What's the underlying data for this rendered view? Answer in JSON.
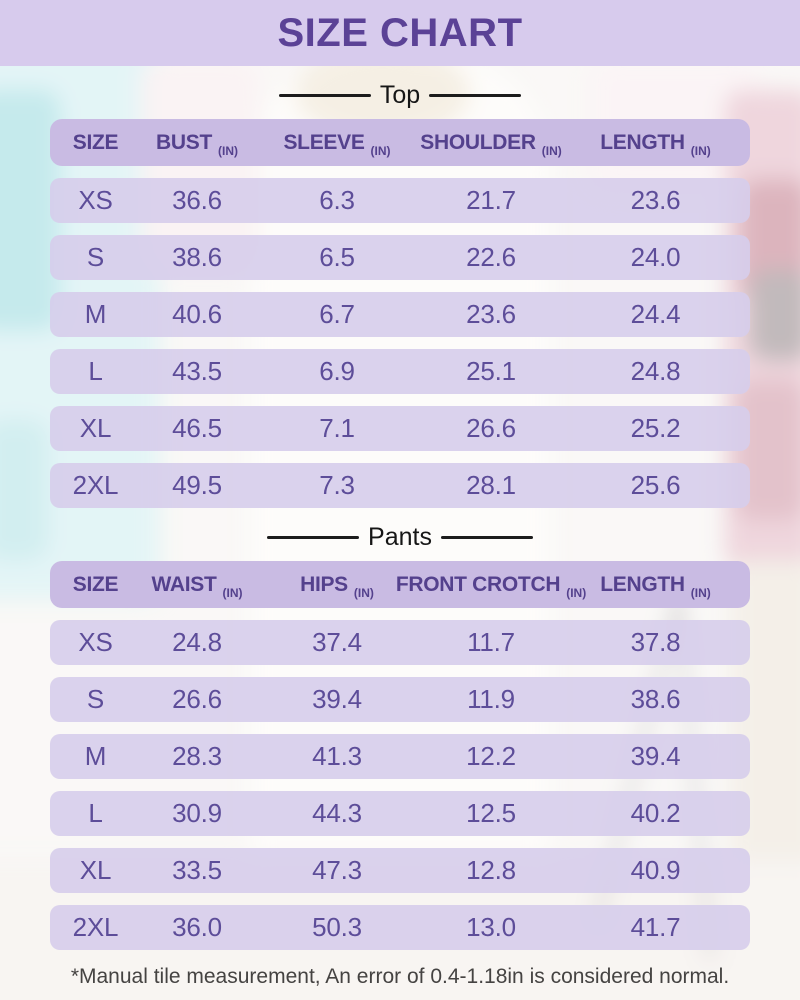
{
  "title": "SIZE CHART",
  "unit_label": "(IN)",
  "footer_note": "*Manual tile measurement, An error of 0.4-1.18in is considered normal.",
  "colors": {
    "banner_bg": "#d7cbed",
    "title_text": "#5b4296",
    "header_row_bg": "#c9bbe3",
    "header_text": "#54418d",
    "row_bg": "#d6cdeb",
    "value_text": "#5d4d99",
    "section_label_text": "#161616",
    "rule_color": "#1c1c1c",
    "footer_text": "#454342"
  },
  "sections": [
    {
      "label": "Top",
      "columns": [
        "SIZE",
        "BUST",
        "SLEEVE",
        "SHOULDER",
        "LENGTH"
      ],
      "rows": [
        {
          "size": "XS",
          "values": [
            "36.6",
            "6.3",
            "21.7",
            "23.6"
          ]
        },
        {
          "size": "S",
          "values": [
            "38.6",
            "6.5",
            "22.6",
            "24.0"
          ]
        },
        {
          "size": "M",
          "values": [
            "40.6",
            "6.7",
            "23.6",
            "24.4"
          ]
        },
        {
          "size": "L",
          "values": [
            "43.5",
            "6.9",
            "25.1",
            "24.8"
          ]
        },
        {
          "size": "XL",
          "values": [
            "46.5",
            "7.1",
            "26.6",
            "25.2"
          ]
        },
        {
          "size": "2XL",
          "values": [
            "49.5",
            "7.3",
            "28.1",
            "25.6"
          ]
        }
      ]
    },
    {
      "label": "Pants",
      "columns": [
        "SIZE",
        "WAIST",
        "HIPS",
        "FRONT CROTCH",
        "LENGTH"
      ],
      "rows": [
        {
          "size": "XS",
          "values": [
            "24.8",
            "37.4",
            "11.7",
            "37.8"
          ]
        },
        {
          "size": "S",
          "values": [
            "26.6",
            "39.4",
            "11.9",
            "38.6"
          ]
        },
        {
          "size": "M",
          "values": [
            "28.3",
            "41.3",
            "12.2",
            "39.4"
          ]
        },
        {
          "size": "L",
          "values": [
            "30.9",
            "44.3",
            "12.5",
            "40.2"
          ]
        },
        {
          "size": "XL",
          "values": [
            "33.5",
            "47.3",
            "12.8",
            "40.9"
          ]
        },
        {
          "size": "2XL",
          "values": [
            "36.0",
            "50.3",
            "13.0",
            "41.7"
          ]
        }
      ]
    }
  ]
}
